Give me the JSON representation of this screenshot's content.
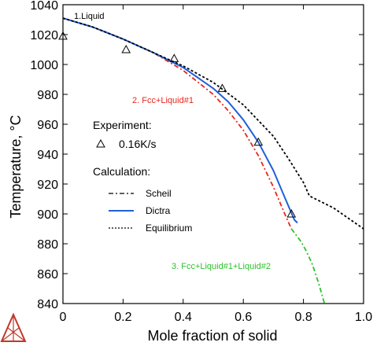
{
  "chart_data": {
    "type": "line",
    "xlabel": "Mole fraction of solid",
    "ylabel": "Temperature, °C",
    "xlim": [
      0,
      1.0
    ],
    "ylim": [
      840,
      1040
    ],
    "x_ticks": [
      "0",
      "0.2",
      "0.4",
      "0.6",
      "0.8",
      "1.0"
    ],
    "y_ticks": [
      "840",
      "860",
      "880",
      "900",
      "920",
      "940",
      "960",
      "980",
      "1000",
      "1020",
      "1040"
    ],
    "annotations": [
      {
        "text": "1.Liquid",
        "color": "#000000"
      },
      {
        "text": "2. Fcc+Liquid#1",
        "color": "#e8261c"
      },
      {
        "text": "3. Fcc+Liquid#1+Liquid#2",
        "color": "#2ec02e"
      }
    ],
    "legend": {
      "experiment_title": "Experiment:",
      "experiment_label": "0.16K/s",
      "calculation_title": "Calculation:",
      "items": [
        {
          "label": "Scheil",
          "style": "dash-dot",
          "color": "#000000"
        },
        {
          "label": "Dictra",
          "style": "solid",
          "color": "#2060d8"
        },
        {
          "label": "Equilibrium",
          "style": "dotted",
          "color": "#000000"
        }
      ]
    },
    "series": [
      {
        "name": "Scheil",
        "color": "#e8261c",
        "style": "dash-dot",
        "x": [
          0.0,
          0.1,
          0.2,
          0.3,
          0.4,
          0.5,
          0.55,
          0.6,
          0.65,
          0.7,
          0.74,
          0.76
        ],
        "y": [
          1031,
          1025,
          1017,
          1008,
          996,
          980,
          969,
          956,
          939,
          918,
          899,
          890
        ]
      },
      {
        "name": "Scheil (3-phase)",
        "color": "#2ec02e",
        "style": "dash-dot",
        "x": [
          0.76,
          0.79,
          0.81,
          0.83,
          0.85,
          0.87
        ],
        "y": [
          890,
          882,
          875,
          866,
          854,
          840
        ]
      },
      {
        "name": "Dictra",
        "color": "#2060d8",
        "style": "solid",
        "x": [
          0.0,
          0.1,
          0.2,
          0.3,
          0.4,
          0.5,
          0.55,
          0.6,
          0.65,
          0.7,
          0.74,
          0.77,
          0.78
        ],
        "y": [
          1031,
          1025,
          1017,
          1008,
          998,
          984,
          975,
          963,
          948,
          929,
          910,
          896,
          894
        ]
      },
      {
        "name": "Equilibrium",
        "color": "#000000",
        "style": "dotted",
        "x": [
          0.0,
          0.1,
          0.2,
          0.3,
          0.4,
          0.5,
          0.6,
          0.7,
          0.75,
          0.8,
          0.82,
          0.9,
          1.0
        ],
        "y": [
          1031,
          1025,
          1017,
          1008,
          999,
          988,
          973,
          952,
          937,
          921,
          912,
          904,
          890
        ]
      }
    ],
    "experiment_points": {
      "x": [
        0.0,
        0.21,
        0.37,
        0.53,
        0.65,
        0.76
      ],
      "y": [
        1019,
        1010,
        1004,
        984,
        948,
        900
      ]
    }
  }
}
